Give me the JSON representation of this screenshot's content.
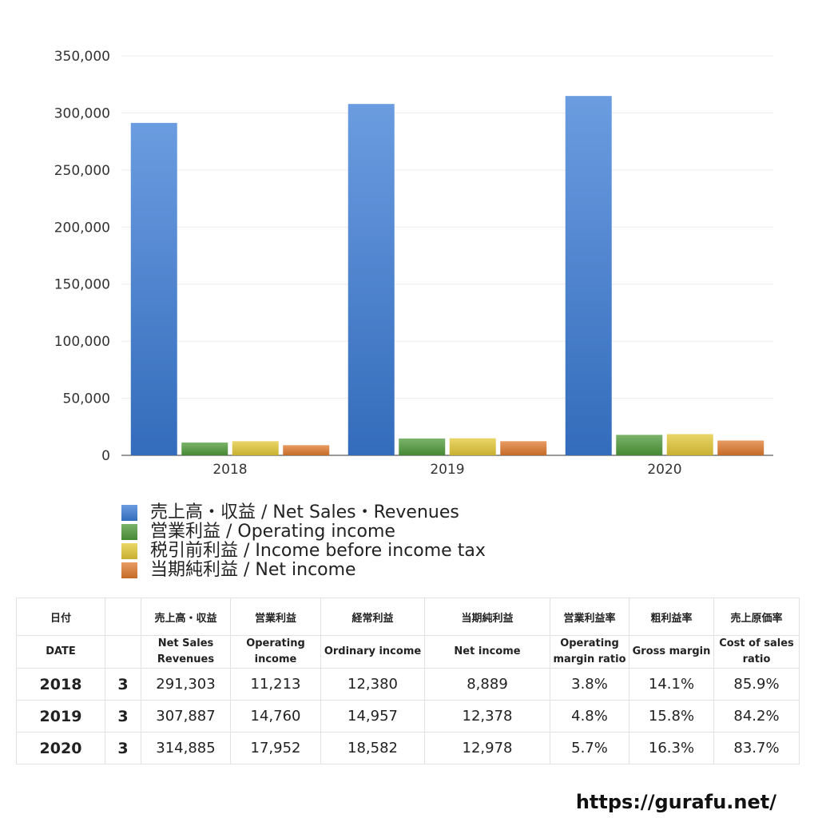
{
  "chart_data": {
    "type": "bar",
    "categories": [
      "2018",
      "2019",
      "2020"
    ],
    "series": [
      {
        "name": "売上高・収益 / Net Sales・Revenues",
        "values": [
          291303,
          307887,
          314885
        ],
        "color": "#3a7bd5"
      },
      {
        "name": "営業利益 / Operating income",
        "values": [
          11213,
          14760,
          17952
        ],
        "color": "#4f9a3a"
      },
      {
        "name": "税引前利益 / Income before income tax",
        "values": [
          12380,
          14957,
          18582
        ],
        "color": "#e3c837"
      },
      {
        "name": "当期純利益 / Net income",
        "values": [
          8889,
          12378,
          12978
        ],
        "color": "#e07a2e"
      }
    ],
    "ylim": [
      0,
      350000
    ],
    "yticks": [
      "0",
      "50,000",
      "100,000",
      "150,000",
      "200,000",
      "250,000",
      "300,000",
      "350,000"
    ],
    "grid": true,
    "legend_position": "bottom-left"
  },
  "table": {
    "header_jp": [
      "日付",
      "",
      "売上高・収益",
      "営業利益",
      "経常利益",
      "当期純利益",
      "営業利益率",
      "粗利益率",
      "売上原価率"
    ],
    "header_en": [
      [
        "DATE"
      ],
      [
        ""
      ],
      [
        "Net Sales",
        "Revenues"
      ],
      [
        "Operating",
        "income"
      ],
      [
        "Ordinary income"
      ],
      [
        "Net income"
      ],
      [
        "Operating",
        "margin ratio"
      ],
      [
        "Gross margin"
      ],
      [
        "Cost of sales",
        "ratio"
      ]
    ],
    "rows": [
      [
        "2018",
        "3",
        "291,303",
        "11,213",
        "12,380",
        "8,889",
        "3.8%",
        "14.1%",
        "85.9%"
      ],
      [
        "2019",
        "3",
        "307,887",
        "14,760",
        "14,957",
        "12,378",
        "4.8%",
        "15.8%",
        "84.2%"
      ],
      [
        "2020",
        "3",
        "314,885",
        "17,952",
        "18,582",
        "12,978",
        "5.7%",
        "16.3%",
        "83.7%"
      ]
    ]
  },
  "footer": {
    "url": "https://gurafu.net/"
  }
}
